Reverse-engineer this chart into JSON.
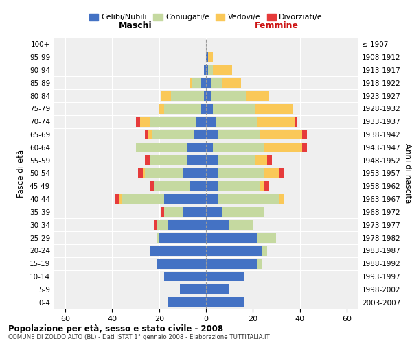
{
  "age_groups_bottom_to_top": [
    "0-4",
    "5-9",
    "10-14",
    "15-19",
    "20-24",
    "25-29",
    "30-34",
    "35-39",
    "40-44",
    "45-49",
    "50-54",
    "55-59",
    "60-64",
    "65-69",
    "70-74",
    "75-79",
    "80-84",
    "85-89",
    "90-94",
    "95-99",
    "100+"
  ],
  "birth_years_bottom_to_top": [
    "2003-2007",
    "1998-2002",
    "1993-1997",
    "1988-1992",
    "1983-1987",
    "1978-1982",
    "1973-1977",
    "1968-1972",
    "1963-1967",
    "1958-1962",
    "1953-1957",
    "1948-1952",
    "1943-1947",
    "1938-1942",
    "1933-1937",
    "1928-1932",
    "1923-1927",
    "1918-1922",
    "1913-1917",
    "1908-1912",
    "≤ 1907"
  ],
  "male": {
    "celibi": [
      16,
      11,
      18,
      21,
      24,
      20,
      16,
      10,
      18,
      7,
      10,
      8,
      8,
      5,
      4,
      2,
      1,
      2,
      1,
      0,
      0
    ],
    "coniugati": [
      0,
      0,
      0,
      0,
      0,
      1,
      5,
      8,
      18,
      15,
      16,
      16,
      22,
      18,
      20,
      16,
      14,
      4,
      0,
      0,
      0
    ],
    "vedovi": [
      0,
      0,
      0,
      0,
      0,
      0,
      0,
      0,
      1,
      0,
      1,
      0,
      0,
      2,
      4,
      2,
      4,
      1,
      0,
      0,
      0
    ],
    "divorziati": [
      0,
      0,
      0,
      0,
      0,
      0,
      1,
      1,
      2,
      2,
      2,
      2,
      0,
      1,
      2,
      0,
      0,
      0,
      0,
      0,
      0
    ]
  },
  "female": {
    "nubili": [
      16,
      10,
      16,
      22,
      24,
      22,
      10,
      7,
      5,
      5,
      5,
      5,
      3,
      5,
      4,
      3,
      2,
      2,
      1,
      1,
      0
    ],
    "coniugate": [
      0,
      0,
      0,
      2,
      2,
      8,
      10,
      18,
      26,
      18,
      20,
      16,
      22,
      18,
      18,
      18,
      15,
      5,
      2,
      0,
      0
    ],
    "vedove": [
      0,
      0,
      0,
      0,
      0,
      0,
      0,
      0,
      2,
      2,
      6,
      5,
      16,
      18,
      16,
      16,
      10,
      8,
      8,
      2,
      0
    ],
    "divorziate": [
      0,
      0,
      0,
      0,
      0,
      0,
      0,
      0,
      0,
      2,
      2,
      2,
      2,
      2,
      1,
      0,
      0,
      0,
      0,
      0,
      0
    ]
  },
  "colors": {
    "celibi": "#4472C4",
    "coniugati": "#C5D9A0",
    "vedovi": "#FAC858",
    "divorziati": "#E63B3B"
  },
  "title1": "Popolazione per età, sesso e stato civile - 2008",
  "title2": "COMUNE DI ZOLDO ALTO (BL) - Dati ISTAT 1° gennaio 2008 - Elaborazione TUTTITALIA.IT",
  "xlim": 65,
  "legend_labels": [
    "Celibi/Nubili",
    "Coniugati/e",
    "Vedovi/e",
    "Divorziati/e"
  ],
  "left_header": "Maschi",
  "right_header": "Femmine",
  "ylabel_left": "Fasce di età",
  "ylabel_right": "Anni di nascita",
  "background_color": "#efefef",
  "bar_height": 0.78
}
